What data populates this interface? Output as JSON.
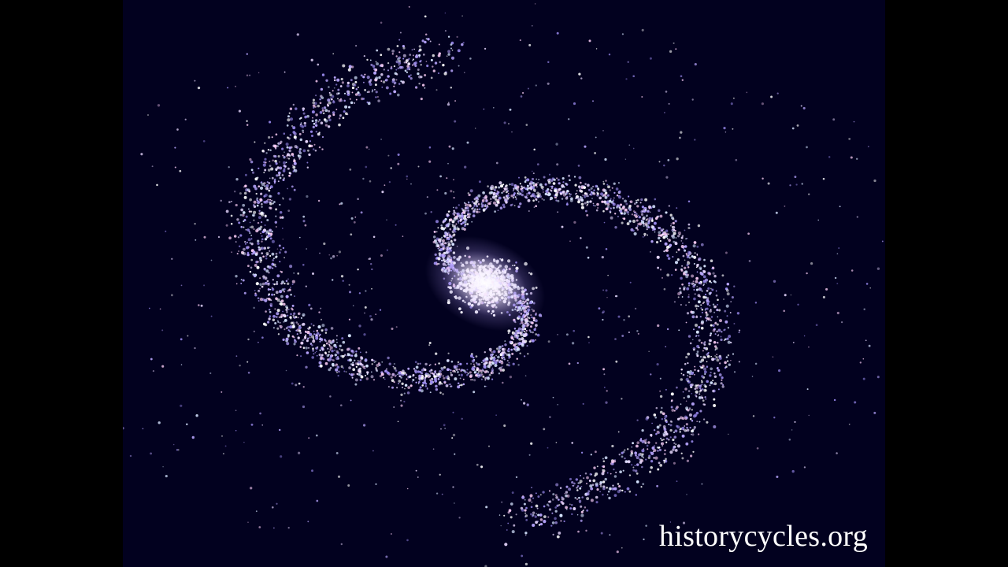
{
  "video": {
    "watermark_text": "historycycles.org",
    "background_color": "#02011f",
    "letterbox_color": "#000000",
    "particle_colors": [
      "#ffffff",
      "#e8d8ff",
      "#b9a6ff",
      "#f4c8f0",
      "#9c8cf0",
      "#d6e4ff"
    ],
    "subject": "spiral-galaxy-particle-simulation"
  }
}
